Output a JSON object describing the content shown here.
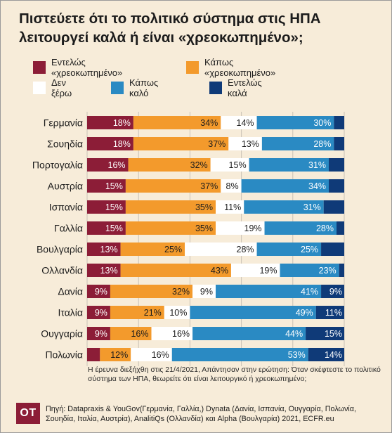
{
  "title": "Πιστεύετε ότι το πολιτικό σύστημα στις ΗΠΑ λειτουργεί καλά ή είναι «χρεοκωπημένο»;",
  "legend": [
    {
      "label": "Εντελώς «χρεοκωπημένο»",
      "color": "#8c1d37"
    },
    {
      "label": "Κάπως «χρεοκωπημένο»",
      "color": "#f39a2c"
    },
    {
      "label": "Δεν ξέρω",
      "color": "#ffffff"
    },
    {
      "label": "Κάπως καλό",
      "color": "#2a8ac3"
    },
    {
      "label": "Εντελώς καλά",
      "color": "#0f3a78"
    }
  ],
  "chart_data": {
    "type": "bar",
    "orientation": "horizontal",
    "stacked": true,
    "categories": [
      "Γερμανία",
      "Σουηδία",
      "Πορτογαλία",
      "Αυστρία",
      "Ισπανία",
      "Γαλλία",
      "Βουλγαρία",
      "Ολλανδία",
      "Δανία",
      "Ιταλία",
      "Ουγγαρία",
      "Πολωνία"
    ],
    "series": [
      {
        "name": "Εντελώς «χρεοκωπημένο»",
        "color": "#8c1d37",
        "values": [
          18,
          18,
          16,
          15,
          15,
          15,
          13,
          13,
          9,
          9,
          9,
          5
        ],
        "labels": [
          "18%",
          "18%",
          "16%",
          "15%",
          "15%",
          "15%",
          "13%",
          "13%",
          "9%",
          "9%",
          "9%",
          ""
        ]
      },
      {
        "name": "Κάπως «χρεοκωπημένο»",
        "color": "#f39a2c",
        "values": [
          34,
          37,
          32,
          37,
          35,
          35,
          25,
          43,
          32,
          21,
          16,
          12
        ],
        "labels": [
          "34%",
          "37%",
          "32%",
          "37%",
          "35%",
          "35%",
          "25%",
          "43%",
          "32%",
          "21%",
          "16%",
          "12%"
        ]
      },
      {
        "name": "Δεν ξέρω",
        "color": "#ffffff",
        "values": [
          14,
          13,
          15,
          8,
          11,
          19,
          28,
          19,
          9,
          10,
          16,
          16
        ],
        "labels": [
          "14%",
          "13%",
          "15%",
          "8%",
          "11%",
          "19%",
          "28%",
          "19%",
          "9%",
          "10%",
          "16%",
          "16%"
        ]
      },
      {
        "name": "Κάπως καλό",
        "color": "#2a8ac3",
        "values": [
          30,
          28,
          31,
          34,
          31,
          28,
          25,
          23,
          41,
          49,
          44,
          53
        ],
        "labels": [
          "30%",
          "28%",
          "31%",
          "34%",
          "31%",
          "28%",
          "25%",
          "23%",
          "41%",
          "49%",
          "44%",
          "53%"
        ]
      },
      {
        "name": "Εντελώς καλά",
        "color": "#0f3a78",
        "values": [
          4,
          4,
          6,
          6,
          8,
          3,
          9,
          2,
          9,
          11,
          15,
          14
        ],
        "labels": [
          "",
          "",
          "",
          "",
          "",
          "",
          "",
          "",
          "9%",
          "11%",
          "15%",
          "14%"
        ]
      }
    ],
    "xlim": [
      0,
      100
    ],
    "xticks": [
      "0",
      "20",
      "40",
      "60",
      "80",
      "100"
    ],
    "grid": true
  },
  "footnote": "Η έρευνα διεξήχθη στις 21/4/2021, Απάντησαν στην ερώτηση: Όταν σκέφτεστε το πολιτικό σύστημα των ΗΠΑ, θεωρείτε ότι είναι λειτουργικό ή χρεοκωπημένο;",
  "logo_text": "OT",
  "source": "Πηγή: Datapraxis & YouGov(Γερμανία, Γαλλία,) Dynata (Δανία, Ισπανία, Ουγγαρία, Πολωνία, Σουηδία, Ιταλία, Αυστρία), AnalitiQs (Ολλανδία) και Alpha (Βουλγαρία) 2021, ECFR.eu"
}
